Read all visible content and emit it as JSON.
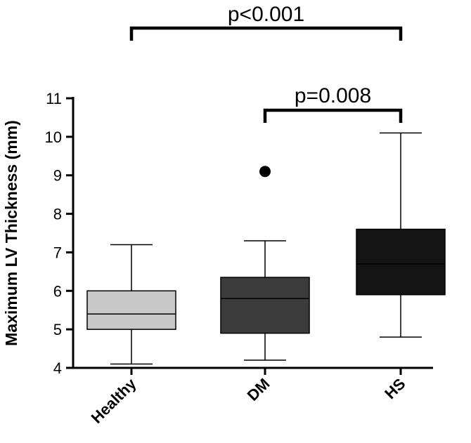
{
  "chart_data": {
    "type": "boxplot",
    "ylabel": "Maximum LV Thickness (mm)",
    "ylim": [
      4,
      11
    ],
    "yticks": [
      4,
      5,
      6,
      7,
      8,
      9,
      10,
      11
    ],
    "ytick_labels": [
      "4",
      "5",
      "6",
      "7",
      "8",
      "9",
      "10",
      "11"
    ],
    "categories": [
      "Healthy",
      "DM",
      "HS"
    ],
    "grid": false,
    "boxes": [
      {
        "category": "Healthy",
        "min": 4.1,
        "q1": 5.0,
        "median": 5.4,
        "q3": 6.0,
        "max": 7.2,
        "outliers": [],
        "color": "#c8c8c8"
      },
      {
        "category": "DM",
        "min": 4.2,
        "q1": 4.9,
        "median": 5.8,
        "q3": 6.35,
        "max": 7.3,
        "outliers": [
          9.1
        ],
        "color": "#3c3c3c"
      },
      {
        "category": "HS",
        "min": 4.8,
        "q1": 5.9,
        "median": 6.7,
        "q3": 7.6,
        "max": 10.1,
        "outliers": [],
        "color": "#141414"
      }
    ],
    "annotations": [
      {
        "from": "Healthy",
        "to": "HS",
        "text": "p<0.001"
      },
      {
        "from": "DM",
        "to": "HS",
        "text": "p=0.008"
      }
    ]
  }
}
